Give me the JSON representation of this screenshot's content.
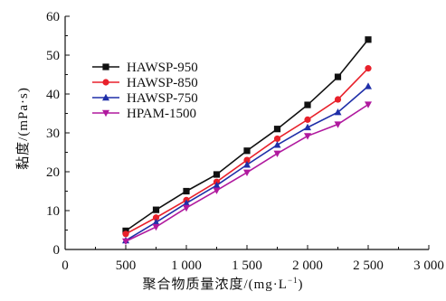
{
  "chart_data": {
    "type": "line",
    "x": [
      500,
      750,
      1000,
      1250,
      1500,
      1750,
      2000,
      2250,
      2500
    ],
    "xlim": [
      0,
      3000
    ],
    "ylim": [
      0,
      60
    ],
    "xticks": [
      "0",
      "500",
      "1 000",
      "1 500",
      "2 000",
      "2 500",
      "3 000"
    ],
    "yticks": [
      "0",
      "10",
      "20",
      "30",
      "40",
      "50",
      "60"
    ],
    "ylabel": "黏度/(mPa·s)",
    "xlabel": "聚合物质量浓度/(mg·L",
    "xlabel_sup": "−1",
    "xlabel_end": ")",
    "legend_position": "upper-left",
    "series": [
      {
        "name": "HAWSP-950",
        "color": "#111111",
        "marker": "square",
        "values": [
          4.8,
          10.2,
          15.0,
          19.3,
          25.4,
          31.0,
          37.2,
          44.4,
          54.0
        ]
      },
      {
        "name": "HAWSP-850",
        "color": "#e8212b",
        "marker": "circle",
        "values": [
          4.0,
          8.2,
          12.7,
          17.4,
          23.0,
          28.5,
          33.4,
          38.6,
          46.6
        ]
      },
      {
        "name": "HAWSP-750",
        "color": "#1f2fa8",
        "marker": "triangle-up",
        "values": [
          2.3,
          7.0,
          11.9,
          16.5,
          21.8,
          26.9,
          31.4,
          35.3,
          42.0
        ]
      },
      {
        "name": "HPAM-1500",
        "color": "#b0199e",
        "marker": "triangle-down",
        "values": [
          2.1,
          5.8,
          10.7,
          15.2,
          19.8,
          24.7,
          29.2,
          32.2,
          37.3
        ]
      }
    ]
  }
}
